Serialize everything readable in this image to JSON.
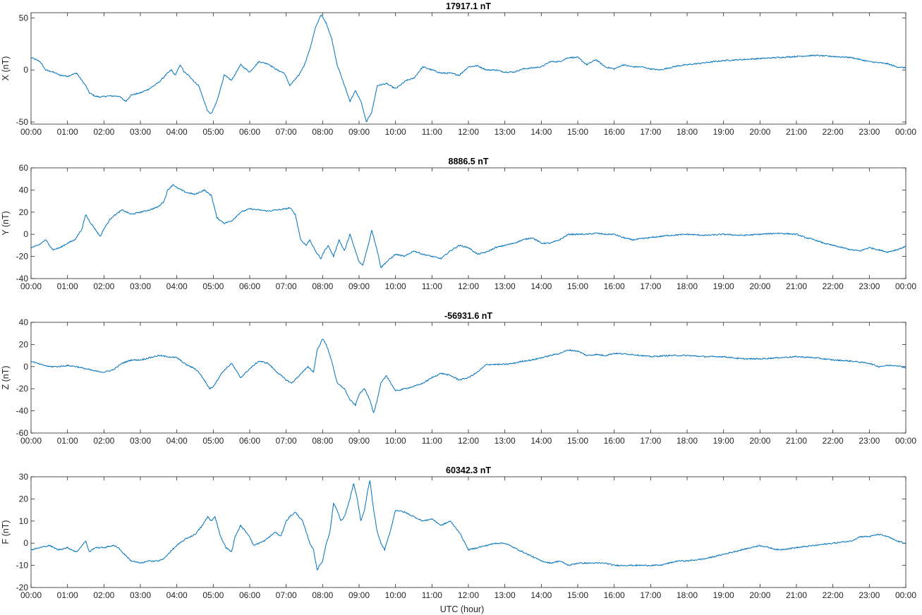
{
  "figure": {
    "xlabel": "UTC (hour)",
    "x_tick_labels": [
      "00:00",
      "01:00",
      "02:00",
      "03:00",
      "04:00",
      "05:00",
      "06:00",
      "07:00",
      "08:00",
      "09:00",
      "10:00",
      "11:00",
      "12:00",
      "13:00",
      "14:00",
      "15:00",
      "16:00",
      "17:00",
      "18:00",
      "19:00",
      "20:00",
      "21:00",
      "22:00",
      "23:00",
      "00:00"
    ],
    "line_color": "#0072BD"
  },
  "chart_data": [
    {
      "type": "line",
      "title": "17917.1 nT",
      "xlabel": "",
      "ylabel": "X (nT)",
      "xlim": [
        0,
        24
      ],
      "ylim": [
        -52,
        55
      ],
      "yticks": [
        -50,
        0,
        50
      ],
      "grid": false,
      "series": [
        {
          "x": [
            0,
            0.25,
            0.4,
            0.6,
            0.8,
            1.0,
            1.25,
            1.5,
            1.6,
            1.75,
            1.9,
            2.1,
            2.4,
            2.6,
            2.75,
            3.0,
            3.25,
            3.5,
            3.75,
            3.85,
            3.95,
            4.1,
            4.2,
            4.35,
            4.5,
            4.6,
            4.7,
            4.85,
            4.95,
            5.1,
            5.3,
            5.5,
            5.75,
            6.0,
            6.25,
            6.5,
            6.75,
            6.95,
            7.1,
            7.35,
            7.5,
            7.65,
            7.8,
            7.95,
            8.1,
            8.25,
            8.4,
            8.6,
            8.75,
            8.9,
            9.05,
            9.2,
            9.35,
            9.5,
            9.75,
            10.0,
            10.3,
            10.5,
            10.75,
            11.0,
            11.25,
            11.5,
            11.75,
            12.0,
            12.25,
            12.5,
            12.75,
            13.0,
            13.25,
            13.5,
            13.75,
            14.0,
            14.25,
            14.5,
            14.75,
            15.0,
            15.25,
            15.5,
            15.75,
            16.0,
            16.25,
            16.5,
            16.75,
            17.0,
            17.25,
            17.5,
            17.75,
            18.0,
            18.5,
            19.0,
            19.5,
            20.0,
            20.5,
            21.0,
            21.5,
            22.0,
            22.5,
            23.0,
            23.5,
            23.75,
            24.0
          ],
          "y": [
            12,
            8,
            0,
            -2,
            -5,
            -6,
            -3,
            -15,
            -22,
            -25,
            -26,
            -25,
            -25,
            -30,
            -24,
            -22,
            -18,
            -12,
            -3,
            0,
            -5,
            5,
            -2,
            -6,
            -12,
            -15,
            -25,
            -40,
            -42,
            -30,
            -5,
            -10,
            5,
            -2,
            8,
            6,
            0,
            -3,
            -15,
            -5,
            5,
            20,
            40,
            53,
            45,
            30,
            5,
            -15,
            -30,
            -20,
            -30,
            -50,
            -40,
            -15,
            -13,
            -18,
            -10,
            -8,
            3,
            0,
            -3,
            -3,
            -5,
            3,
            4,
            0,
            0,
            -2,
            -2,
            1,
            2,
            3,
            8,
            8,
            12,
            12,
            5,
            10,
            3,
            1,
            5,
            3,
            3,
            1,
            0,
            2,
            4,
            5,
            7,
            9,
            10,
            11,
            12,
            13,
            14,
            13,
            12,
            8,
            6,
            3,
            2
          ]
        }
      ]
    },
    {
      "type": "line",
      "title": "8886.5 nT",
      "xlabel": "",
      "ylabel": "Y (nT)",
      "xlim": [
        0,
        24
      ],
      "ylim": [
        -40,
        60
      ],
      "yticks": [
        -40,
        -20,
        0,
        20,
        40,
        60
      ],
      "grid": false,
      "series": [
        {
          "x": [
            0,
            0.2,
            0.4,
            0.6,
            0.8,
            1.0,
            1.2,
            1.4,
            1.5,
            1.6,
            1.75,
            1.9,
            2.0,
            2.2,
            2.5,
            2.75,
            3.0,
            3.25,
            3.5,
            3.65,
            3.75,
            3.9,
            4.0,
            4.25,
            4.5,
            4.75,
            4.95,
            5.1,
            5.3,
            5.5,
            5.75,
            6.0,
            6.25,
            6.5,
            6.75,
            7.0,
            7.1,
            7.25,
            7.4,
            7.55,
            7.65,
            7.8,
            7.95,
            8.05,
            8.15,
            8.3,
            8.45,
            8.6,
            8.75,
            8.85,
            9.0,
            9.1,
            9.25,
            9.35,
            9.5,
            9.6,
            9.75,
            10.0,
            10.25,
            10.5,
            10.75,
            11.0,
            11.25,
            11.5,
            11.75,
            12.0,
            12.25,
            12.5,
            12.75,
            13.0,
            13.25,
            13.5,
            13.75,
            14.0,
            14.25,
            14.5,
            14.75,
            15.0,
            15.25,
            15.5,
            15.75,
            16.0,
            16.25,
            16.5,
            16.75,
            17.0,
            17.5,
            18.0,
            18.5,
            19.0,
            19.5,
            20.0,
            20.5,
            21.0,
            21.25,
            21.5,
            21.75,
            22.0,
            22.25,
            22.5,
            22.75,
            23.0,
            23.25,
            23.5,
            23.75,
            24.0
          ],
          "y": [
            -12,
            -10,
            -5,
            -14,
            -12,
            -8,
            -5,
            5,
            18,
            12,
            5,
            -2,
            5,
            15,
            22,
            18,
            20,
            22,
            25,
            30,
            40,
            45,
            42,
            38,
            36,
            40,
            35,
            15,
            10,
            12,
            20,
            23,
            22,
            21,
            22,
            23,
            24,
            18,
            -5,
            -10,
            -5,
            -15,
            -22,
            -15,
            -10,
            -20,
            -5,
            -15,
            0,
            -10,
            -25,
            -28,
            -10,
            4,
            -15,
            -30,
            -25,
            -18,
            -20,
            -15,
            -18,
            -20,
            -22,
            -15,
            -10,
            -12,
            -18,
            -16,
            -12,
            -10,
            -8,
            -5,
            -3,
            -8,
            -8,
            -5,
            0,
            0,
            0,
            1,
            0,
            0,
            -3,
            -5,
            -4,
            -3,
            -1,
            0,
            -1,
            0,
            -1,
            0,
            1,
            0,
            -3,
            -5,
            -8,
            -10,
            -12,
            -14,
            -15,
            -12,
            -14,
            -16,
            -14,
            -11
          ]
        }
      ]
    },
    {
      "type": "line",
      "title": "-56931.6 nT",
      "xlabel": "",
      "ylabel": "Z (nT)",
      "xlim": [
        0,
        24
      ],
      "ylim": [
        -60,
        40
      ],
      "yticks": [
        -60,
        -40,
        -20,
        0,
        20,
        40
      ],
      "grid": false,
      "series": [
        {
          "x": [
            0,
            0.25,
            0.5,
            0.75,
            1.0,
            1.25,
            1.5,
            1.75,
            2.0,
            2.25,
            2.5,
            2.75,
            3.0,
            3.25,
            3.5,
            3.75,
            4.0,
            4.25,
            4.5,
            4.6,
            4.75,
            4.9,
            5.0,
            5.25,
            5.5,
            5.75,
            6.0,
            6.25,
            6.5,
            6.75,
            7.0,
            7.15,
            7.3,
            7.45,
            7.6,
            7.75,
            7.85,
            8.0,
            8.1,
            8.25,
            8.4,
            8.6,
            8.75,
            8.9,
            9.0,
            9.15,
            9.3,
            9.4,
            9.5,
            9.6,
            9.75,
            10.0,
            10.25,
            10.5,
            10.75,
            11.0,
            11.25,
            11.5,
            11.75,
            12.0,
            12.25,
            12.5,
            12.75,
            13.0,
            13.25,
            13.5,
            13.75,
            14.0,
            14.25,
            14.5,
            14.75,
            15.0,
            15.25,
            15.5,
            15.75,
            16.0,
            16.5,
            17.0,
            17.5,
            18.0,
            18.5,
            19.0,
            19.5,
            20.0,
            20.5,
            21.0,
            21.5,
            22.0,
            22.5,
            23.0,
            23.25,
            23.5,
            23.75,
            24.0
          ],
          "y": [
            5,
            2,
            0,
            0,
            1,
            0,
            -2,
            -4,
            -5,
            -3,
            3,
            6,
            6,
            8,
            10,
            9,
            8,
            2,
            -2,
            -5,
            -12,
            -20,
            -18,
            -5,
            3,
            -10,
            -2,
            5,
            3,
            -5,
            -12,
            -15,
            -10,
            -5,
            0,
            -5,
            15,
            25,
            20,
            5,
            -15,
            -20,
            -30,
            -35,
            -25,
            -20,
            -30,
            -42,
            -30,
            -15,
            -8,
            -22,
            -20,
            -18,
            -15,
            -10,
            -6,
            -8,
            -12,
            -10,
            -5,
            2,
            2,
            2,
            3,
            5,
            6,
            8,
            10,
            12,
            15,
            14,
            10,
            11,
            10,
            12,
            11,
            9,
            10,
            10,
            9,
            9,
            7,
            7,
            8,
            9,
            8,
            6,
            5,
            3,
            0,
            1,
            1,
            -1
          ]
        }
      ]
    },
    {
      "type": "line",
      "title": "60342.3 nT",
      "xlabel": "UTC (hour)",
      "ylabel": "F (nT)",
      "xlim": [
        0,
        24
      ],
      "ylim": [
        -20,
        30
      ],
      "yticks": [
        -20,
        -10,
        0,
        10,
        20,
        30
      ],
      "grid": false,
      "series": [
        {
          "x": [
            0,
            0.25,
            0.5,
            0.75,
            1.0,
            1.25,
            1.4,
            1.5,
            1.6,
            1.75,
            2.0,
            2.25,
            2.4,
            2.5,
            2.75,
            3.0,
            3.25,
            3.5,
            3.65,
            3.75,
            4.0,
            4.25,
            4.5,
            4.7,
            4.85,
            4.95,
            5.05,
            5.2,
            5.35,
            5.5,
            5.6,
            5.75,
            5.9,
            6.0,
            6.1,
            6.25,
            6.4,
            6.55,
            6.7,
            6.85,
            7.0,
            7.1,
            7.25,
            7.45,
            7.55,
            7.65,
            7.75,
            7.85,
            8.0,
            8.1,
            8.2,
            8.3,
            8.4,
            8.5,
            8.6,
            8.75,
            8.85,
            8.95,
            9.05,
            9.15,
            9.25,
            9.3,
            9.4,
            9.5,
            9.6,
            9.7,
            9.85,
            10.0,
            10.25,
            10.5,
            10.75,
            11.0,
            11.25,
            11.5,
            11.75,
            12.0,
            12.25,
            12.5,
            12.75,
            13.0,
            13.25,
            13.5,
            13.75,
            14.0,
            14.25,
            14.5,
            14.75,
            15.0,
            15.25,
            15.5,
            15.75,
            16.0,
            16.25,
            16.5,
            16.75,
            17.0,
            17.25,
            17.5,
            17.75,
            18.0,
            18.5,
            19.0,
            19.5,
            20.0,
            20.5,
            21.0,
            21.5,
            22.0,
            22.5,
            22.75,
            23.0,
            23.25,
            23.5,
            23.75,
            24.0
          ],
          "y": [
            -3,
            -2,
            -1,
            -3,
            -2,
            -4,
            -1,
            1,
            -4,
            -2,
            -2,
            -1,
            -2,
            -4,
            -8,
            -9,
            -8,
            -8,
            -7,
            -5,
            -1,
            2,
            4,
            8,
            12,
            10,
            12,
            3,
            -2,
            -4,
            3,
            8,
            5,
            3,
            -1,
            0,
            1,
            3,
            5,
            3,
            10,
            12,
            14,
            10,
            5,
            0,
            -3,
            -12,
            -8,
            0,
            5,
            18,
            15,
            10,
            12,
            20,
            27,
            20,
            10,
            15,
            25,
            28,
            15,
            5,
            0,
            -3,
            5,
            15,
            14,
            12,
            10,
            11,
            8,
            10,
            5,
            -3,
            -2,
            -1,
            0,
            0,
            -2,
            -4,
            -6,
            -8,
            -9,
            -8,
            -10,
            -9,
            -9,
            -9,
            -9,
            -10,
            -10,
            -10,
            -10,
            -10,
            -10,
            -9,
            -8,
            -8,
            -7,
            -5,
            -3,
            -1,
            -3,
            -2,
            -1,
            0,
            1,
            3,
            3,
            4,
            3,
            1,
            0
          ]
        }
      ]
    }
  ]
}
